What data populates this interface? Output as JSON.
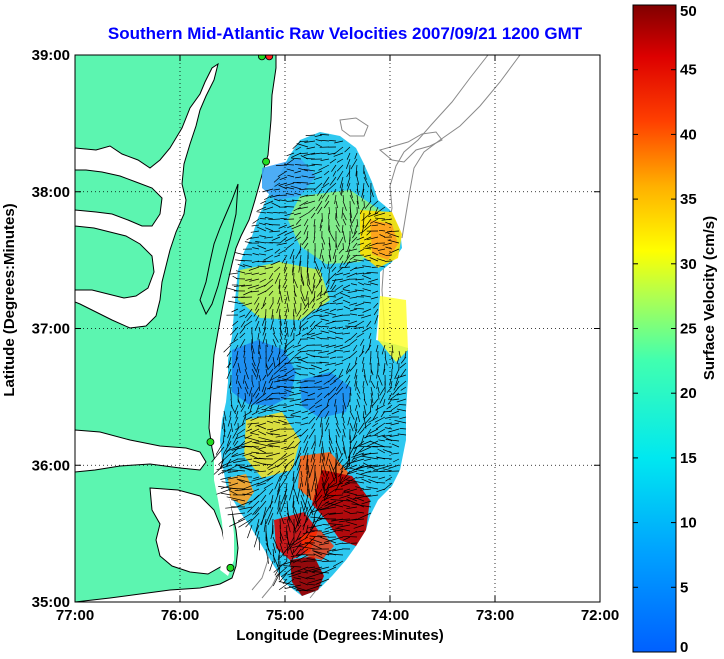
{
  "chart_data": {
    "type": "map",
    "title": "Southern Mid-Atlantic Raw Velocities 2007/09/21 1200 GMT",
    "title_color": "#0000ff",
    "xlabel": "Longitude (Degrees:Minutes)",
    "ylabel": "Latitude (Degrees:Minutes)",
    "x_range": [
      -77,
      -72
    ],
    "y_range": [
      35,
      39
    ],
    "x_tick_values": [
      -77,
      -76,
      -75,
      -74,
      -73,
      -72
    ],
    "x_tick_labels": [
      "77:00",
      "76:00",
      "75:00",
      "74:00",
      "73:00",
      "72:00"
    ],
    "y_tick_values": [
      35,
      36,
      37,
      38,
      39
    ],
    "y_tick_labels": [
      "35:00",
      "36:00",
      "37:00",
      "38:00",
      "39:00"
    ],
    "grid": "dotted",
    "colorbar": {
      "label": "Surface Velocity (cm/s)",
      "range": [
        0,
        50
      ],
      "tick_values": [
        0,
        5,
        10,
        15,
        20,
        25,
        30,
        35,
        40,
        45,
        50
      ],
      "tick_labels": [
        "0",
        "5",
        "10",
        "15",
        "20",
        "25",
        "30",
        "35",
        "40",
        "45",
        "50"
      ],
      "colormap": "jet",
      "placement": "right"
    },
    "colors": {
      "land": "#5cf5b0",
      "coastline": "#000000",
      "bathymetry": "#8a8a8a",
      "station_green": "#22dd22",
      "station_red": "#ff2020"
    },
    "stations": [
      {
        "lon": -75.15,
        "lat": 38.99,
        "color": "red"
      },
      {
        "lon": -75.22,
        "lat": 38.99,
        "color": "green"
      },
      {
        "lon": -75.18,
        "lat": 38.22,
        "color": "green"
      },
      {
        "lon": -75.71,
        "lat": 36.17,
        "color": "green"
      },
      {
        "lon": -75.52,
        "lat": 35.25,
        "color": "green"
      }
    ],
    "velocity_regions": [
      {
        "lon": -75.0,
        "lat": 37.97,
        "speed": 12
      },
      {
        "lon": -74.7,
        "lat": 37.9,
        "speed": 16
      },
      {
        "lon": -74.25,
        "lat": 37.7,
        "speed": 33
      },
      {
        "lon": -74.5,
        "lat": 37.35,
        "speed": 24
      },
      {
        "lon": -75.15,
        "lat": 37.25,
        "speed": 20
      },
      {
        "lon": -75.3,
        "lat": 36.85,
        "speed": 11
      },
      {
        "lon": -74.8,
        "lat": 36.6,
        "speed": 9
      },
      {
        "lon": -74.35,
        "lat": 36.55,
        "speed": 14
      },
      {
        "lon": -74.1,
        "lat": 37.0,
        "speed": 26
      },
      {
        "lon": -75.4,
        "lat": 36.3,
        "speed": 21
      },
      {
        "lon": -75.6,
        "lat": 35.85,
        "speed": 30
      },
      {
        "lon": -74.6,
        "lat": 35.75,
        "speed": 50
      },
      {
        "lon": -74.95,
        "lat": 35.45,
        "speed": 46
      },
      {
        "lon": -75.0,
        "lat": 35.2,
        "speed": 50
      },
      {
        "lon": -75.2,
        "lat": 35.6,
        "speed": 36
      }
    ]
  }
}
